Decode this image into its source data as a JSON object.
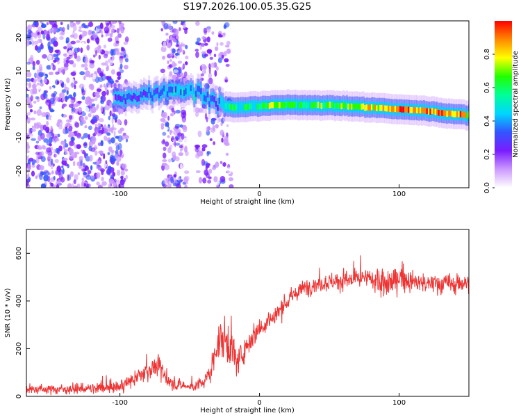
{
  "title": "S197.2026.100.05.35.G25",
  "chart_data": [
    {
      "type": "heatmap",
      "xlabel": "Height of straight line (km)",
      "ylabel": "Frequency (Hz)",
      "xlim": [
        -167,
        150
      ],
      "ylim": [
        -25,
        25
      ],
      "xticks": [
        -100,
        0,
        100
      ],
      "yticks": [
        -20,
        -10,
        0,
        10,
        20
      ],
      "colorbar": {
        "label": "Normalized spectral amplitude",
        "range": [
          0,
          1
        ],
        "ticks": [
          "0.0",
          "0.2",
          "0.4",
          "0.6",
          "0.8"
        ],
        "colors": [
          "#ffffff",
          "#cc99ff",
          "#7a1cff",
          "#3355ff",
          "#00d6ff",
          "#00ff99",
          "#22ff00",
          "#ffff00",
          "#ff8800",
          "#ff0000"
        ]
      },
      "ridge": {
        "x": [
          -100,
          -90,
          -80,
          -70,
          -60,
          -50,
          -40,
          -30,
          -20,
          -10,
          0,
          10,
          20,
          40,
          60,
          80,
          100,
          120,
          140,
          150
        ],
        "hz": [
          1.5,
          2.5,
          3,
          4,
          4.5,
          4,
          3,
          0,
          -1,
          -0.8,
          -0.5,
          -0.3,
          -0.2,
          -0.2,
          -0.5,
          -1,
          -1.5,
          -2,
          -3,
          -3.2
        ],
        "amp": [
          0.25,
          0.3,
          0.35,
          0.4,
          0.4,
          0.4,
          0.35,
          0.35,
          0.6,
          0.5,
          0.6,
          0.7,
          0.6,
          0.6,
          0.7,
          0.8,
          0.85,
          0.9,
          0.9,
          0.8
        ]
      }
    },
    {
      "type": "line",
      "xlabel": "Height of straight line (km)",
      "ylabel": "SNR (10 * v/v)",
      "xlim": [
        -167,
        150
      ],
      "ylim": [
        0,
        700
      ],
      "xticks": [
        -100,
        0,
        100
      ],
      "yticks": [
        0,
        200,
        400,
        600
      ],
      "color": "#ee3333",
      "x": [
        -167,
        -150,
        -120,
        -100,
        -90,
        -80,
        -75,
        -70,
        -65,
        -60,
        -50,
        -45,
        -40,
        -35,
        -30,
        -25,
        -20,
        -15,
        -10,
        0,
        10,
        20,
        30,
        40,
        50,
        60,
        70,
        80,
        85,
        90,
        95,
        100,
        110,
        120,
        130,
        140,
        150
      ],
      "snr_mean": [
        30,
        30,
        32,
        40,
        70,
        110,
        125,
        110,
        60,
        50,
        40,
        45,
        60,
        100,
        230,
        240,
        200,
        140,
        210,
        290,
        330,
        400,
        450,
        470,
        480,
        485,
        490,
        495,
        480,
        460,
        480,
        500,
        480,
        470,
        475,
        470,
        480
      ],
      "snr_spread": [
        20,
        20,
        22,
        25,
        30,
        40,
        50,
        45,
        30,
        25,
        20,
        25,
        30,
        40,
        70,
        90,
        80,
        60,
        50,
        50,
        45,
        40,
        35,
        35,
        40,
        40,
        40,
        45,
        50,
        80,
        60,
        50,
        45,
        45,
        45,
        45,
        45
      ]
    }
  ]
}
